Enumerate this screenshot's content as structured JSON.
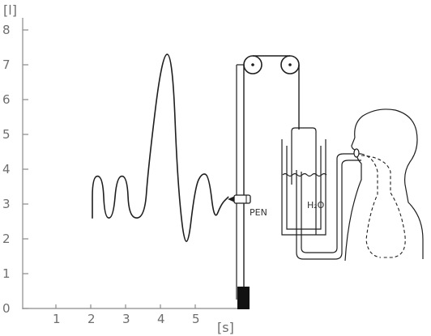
{
  "axes": {
    "y_unit": "[l]",
    "x_unit": "[s]",
    "y_ticks": [
      "0",
      "1",
      "2",
      "3",
      "4",
      "5",
      "6",
      "7",
      "8"
    ],
    "x_ticks": [
      "1",
      "2",
      "3",
      "4",
      "5"
    ]
  },
  "apparatus": {
    "pen_label": "PEN",
    "water_label": "H₂O"
  },
  "trace": {
    "description_points_in_data_units": [
      [
        2.0,
        2.6
      ],
      [
        2.0,
        3.8
      ],
      [
        2.3,
        3.8
      ],
      [
        2.35,
        2.6
      ],
      [
        2.6,
        2.6
      ],
      [
        2.7,
        3.8
      ],
      [
        3.0,
        3.8
      ],
      [
        3.05,
        2.6
      ],
      [
        3.5,
        2.6
      ],
      [
        3.6,
        4.0
      ],
      [
        4.0,
        7.3
      ],
      [
        4.3,
        7.3
      ],
      [
        4.45,
        3.5
      ],
      [
        4.7,
        1.4
      ],
      [
        4.95,
        3.5
      ],
      [
        5.15,
        3.9
      ],
      [
        5.35,
        3.8
      ],
      [
        5.5,
        2.5
      ],
      [
        5.7,
        3.0
      ],
      [
        5.9,
        3.2
      ]
    ]
  }
}
